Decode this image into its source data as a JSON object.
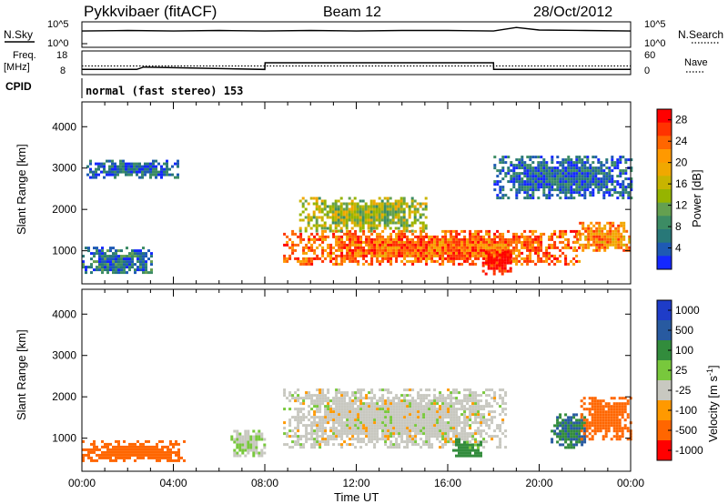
{
  "header": {
    "station": "Pykkvibaer (fitACF)",
    "beam": "Beam 12",
    "date": "28/Oct/2012"
  },
  "params": {
    "nsky_label": "N.Sky",
    "nsky_ticks": [
      "10^5",
      "10^0"
    ],
    "nsearch_label": "N.Search",
    "freq_label": "Freq.",
    "freq_unit": "[MHz]",
    "freq_ticks": [
      "18",
      "8"
    ],
    "nave_label": "Nave",
    "nave_ticks": [
      "60",
      "0"
    ],
    "cpid_label": "CPID",
    "cpid_text": "normal (fast stereo) 153"
  },
  "chart_data": [
    {
      "type": "line",
      "title": "N.Sky / N.Search",
      "x": [
        0,
        2,
        4,
        6,
        8,
        10,
        12,
        14,
        16,
        18,
        19,
        20,
        22,
        24
      ],
      "series": [
        {
          "name": "N.Sky",
          "values": [
            3.2,
            3.3,
            3.2,
            3.3,
            3.2,
            3.3,
            3.2,
            3.3,
            3.3,
            3.2,
            3.9,
            3.4,
            3.3,
            3.2
          ]
        }
      ],
      "xlim": [
        0,
        24
      ],
      "ylim": [
        0,
        5
      ]
    },
    {
      "type": "line",
      "title": "Freq. / Nave",
      "x": [
        0,
        2.4,
        2.7,
        8.0,
        8.01,
        18.0,
        18.01,
        24
      ],
      "series": [
        {
          "name": "Freq.",
          "values": [
            10.2,
            10.2,
            11.2,
            10.2,
            13.0,
            13.0,
            10.2,
            10.2
          ]
        },
        {
          "name": "Nave",
          "values": [
            22,
            22,
            22,
            22,
            22,
            22,
            22,
            22
          ]
        }
      ],
      "xlim": [
        0,
        24
      ]
    },
    {
      "type": "heatmap",
      "title": "",
      "ylabel": "Slant Range [km]",
      "yticks": [
        1000,
        2000,
        3000,
        4000
      ],
      "ylim": [
        200,
        4600
      ],
      "xlim": [
        0,
        24
      ],
      "colorbar": {
        "label": "Power [dB]",
        "ticks": [
          4,
          8,
          12,
          16,
          20,
          24,
          28
        ],
        "range": [
          0,
          30
        ]
      },
      "regions": [
        {
          "t": [
            8.8,
            21.8
          ],
          "r": [
            700,
            1500
          ],
          "value": 24
        },
        {
          "t": [
            9.5,
            15.0
          ],
          "r": [
            1500,
            2300
          ],
          "value": 14
        },
        {
          "t": [
            17.5,
            18.8
          ],
          "r": [
            450,
            1000
          ],
          "value": 29
        },
        {
          "t": [
            21.5,
            24.0
          ],
          "r": [
            1000,
            1700
          ],
          "value": 22
        },
        {
          "t": [
            0.0,
            3.0
          ],
          "r": [
            450,
            1100
          ],
          "value": 6
        },
        {
          "t": [
            0.2,
            4.2
          ],
          "r": [
            2800,
            3200
          ],
          "value": 5
        },
        {
          "t": [
            18.0,
            24.0
          ],
          "r": [
            2300,
            3300
          ],
          "value": 5
        }
      ]
    },
    {
      "type": "heatmap",
      "title": "",
      "xlabel": "Time UT",
      "ylabel": "Slant Range [km]",
      "xticks": [
        "00:00",
        "04:00",
        "08:00",
        "12:00",
        "16:00",
        "20:00",
        "00:00"
      ],
      "yticks": [
        1000,
        2000,
        3000,
        4000
      ],
      "ylim": [
        200,
        4600
      ],
      "xlim": [
        0,
        24
      ],
      "colorbar": {
        "label": "Velocity [m s^-1]",
        "ticks": [
          1000,
          500,
          100,
          25,
          -25,
          -100,
          -500,
          -1000
        ]
      },
      "regions": [
        {
          "t": [
            8.8,
            18.5
          ],
          "r": [
            800,
            2200
          ],
          "value": 0
        },
        {
          "t": [
            0.0,
            4.5
          ],
          "r": [
            450,
            950
          ],
          "value": -200
        },
        {
          "t": [
            16.2,
            17.5
          ],
          "r": [
            550,
            1000
          ],
          "value": 80
        },
        {
          "t": [
            20.5,
            22.0
          ],
          "r": [
            800,
            1600
          ],
          "value": 300
        },
        {
          "t": [
            21.8,
            24.0
          ],
          "r": [
            1000,
            2000
          ],
          "value": -200
        },
        {
          "t": [
            6.5,
            8.0
          ],
          "r": [
            600,
            1200
          ],
          "value": 20
        }
      ]
    }
  ],
  "axes": {
    "ylabel": "Slant Range [km]",
    "xlabel": "Time UT",
    "xticks": [
      "00:00",
      "04:00",
      "08:00",
      "12:00",
      "16:00",
      "20:00",
      "00:00"
    ],
    "yticks": [
      "1000",
      "2000",
      "3000",
      "4000"
    ]
  },
  "power_bar": {
    "label": "Power [dB]",
    "ticks": [
      "28",
      "24",
      "20",
      "16",
      "12",
      "8",
      "4"
    ],
    "colors": [
      "#ff0000",
      "#ff3300",
      "#ff6600",
      "#ff9900",
      "#f0a800",
      "#c8b400",
      "#96b400",
      "#64a050",
      "#3c8c64",
      "#287878",
      "#1e5ab4",
      "#1428ff"
    ]
  },
  "velocity_bar": {
    "label": "Velocity [m s",
    "label_sup": "-1",
    "label_end": "]",
    "ticks": [
      "1000",
      "500",
      "100",
      "25",
      "-25",
      "-100",
      "-500",
      "-1000"
    ],
    "colors": [
      "#1e3cc8",
      "#285aa0",
      "#328c3c",
      "#78c83c",
      "#c8c8c0",
      "#ff9900",
      "#ff6600",
      "#ff0000"
    ]
  }
}
